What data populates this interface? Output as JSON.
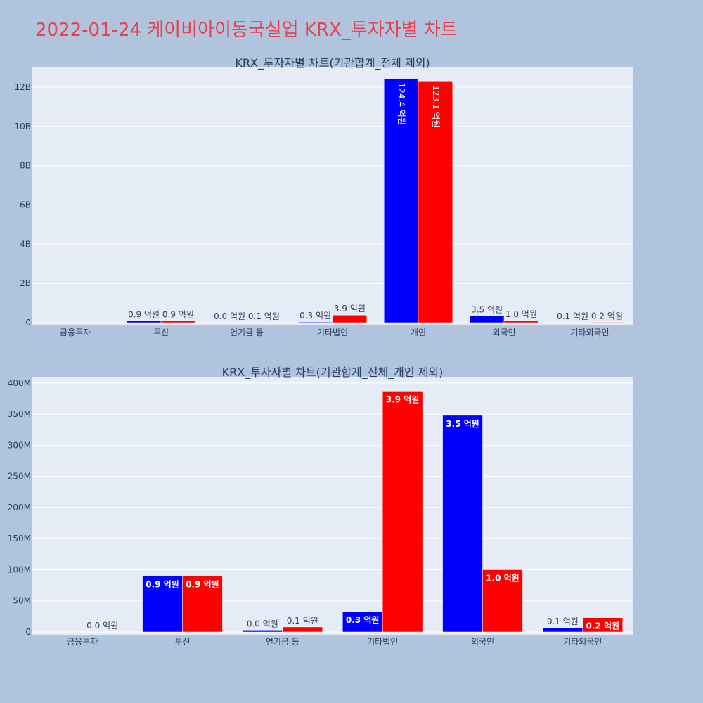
{
  "page_title": "2022-01-24 케이비아이동국실업 KRX_투자자별 차트",
  "colors": {
    "series_a": "#0000ff",
    "series_b": "#ff0000",
    "plot_bg": "#e5ecf6",
    "page_bg": "#b0c4de",
    "title": "#e8424f"
  },
  "chart_data": [
    {
      "type": "bar",
      "title": "KRX_투자자별 차트(기관합계_전체 제외)",
      "categories": [
        "금융투자",
        "투신",
        "연기금 등",
        "기타법인",
        "개인",
        "외국인",
        "기타외국인"
      ],
      "series": [
        {
          "values": [
            0,
            90000000,
            3000000,
            33000000,
            12440000000,
            348000000,
            7000000
          ],
          "labels": [
            "",
            "0.9 억원",
            "0.0 억원",
            "0.3 억원",
            "124.4 억원",
            "3.5 억원",
            "0.1 억원"
          ]
        },
        {
          "values": [
            0,
            90000000,
            8000000,
            387000000,
            12310000000,
            100000000,
            23000000
          ],
          "labels": [
            "",
            "0.9 억원",
            "0.1 억원",
            "3.9 억원",
            "123.1 억원",
            "1.0 억원",
            "0.2 억원"
          ]
        }
      ],
      "ylim": [
        0,
        13000000000
      ],
      "yticks": [
        0,
        2000000000,
        4000000000,
        6000000000,
        8000000000,
        10000000000,
        12000000000
      ],
      "ytick_labels": [
        "0",
        "2B",
        "4B",
        "6B",
        "8B",
        "10B",
        "12B"
      ],
      "grid": true
    },
    {
      "type": "bar",
      "title": "KRX_투자자별 차트(기관합계_전체_개인 제외)",
      "categories": [
        "금융투자",
        "투신",
        "연기금 등",
        "기타법인",
        "외국인",
        "기타외국인"
      ],
      "series": [
        {
          "values": [
            0,
            90000000,
            3000000,
            33000000,
            348000000,
            7000000
          ],
          "labels": [
            "",
            "0.9 억원",
            "0.0 억원",
            "0.3 억원",
            "3.5 억원",
            "0.1 억원"
          ]
        },
        {
          "values": [
            0,
            90000000,
            8000000,
            387000000,
            100000000,
            23000000
          ],
          "labels": [
            "0.0 억원",
            "0.9 억원",
            "0.1 억원",
            "3.9 억원",
            "1.0 억원",
            "0.2 억원"
          ]
        }
      ],
      "ylim": [
        0,
        410000000
      ],
      "yticks": [
        0,
        50000000,
        100000000,
        150000000,
        200000000,
        250000000,
        300000000,
        350000000,
        400000000
      ],
      "ytick_labels": [
        "0",
        "50M",
        "100M",
        "150M",
        "200M",
        "250M",
        "300M",
        "350M",
        "400M"
      ],
      "grid": true
    }
  ]
}
